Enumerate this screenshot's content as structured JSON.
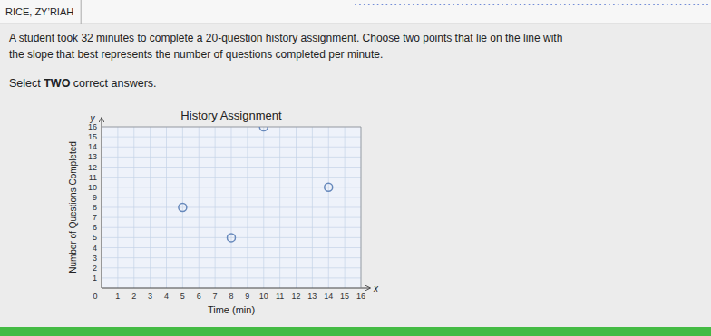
{
  "chart_data": {
    "type": "scatter",
    "title": "History Assignment",
    "xlabel": "Time (min)",
    "ylabel": "Number of Questions Completed",
    "x": [
      5,
      8,
      10,
      14
    ],
    "values": [
      8,
      5,
      16,
      10
    ],
    "xlim": [
      0,
      16
    ],
    "ylim": [
      0,
      16
    ],
    "xticks": [
      1,
      2,
      3,
      4,
      5,
      6,
      7,
      8,
      9,
      10,
      11,
      12,
      13,
      14,
      15,
      16
    ],
    "yticks": [
      1,
      2,
      3,
      4,
      5,
      6,
      7,
      8,
      9,
      10,
      11,
      12,
      13,
      14,
      15,
      16
    ],
    "grid": true,
    "color": "#6688bb",
    "marker": "circle",
    "annotations": [
      "RICE, ZY’RIAH",
      "A student took 32 minutes to complete a 20-question history assignment. Choose two points that lie on the line with\nthe slope that best represents the number of questions completed per minute.",
      "Select ",
      "TWO",
      " correct answers.",
      "x",
      "y",
      "0"
    ]
  }
}
